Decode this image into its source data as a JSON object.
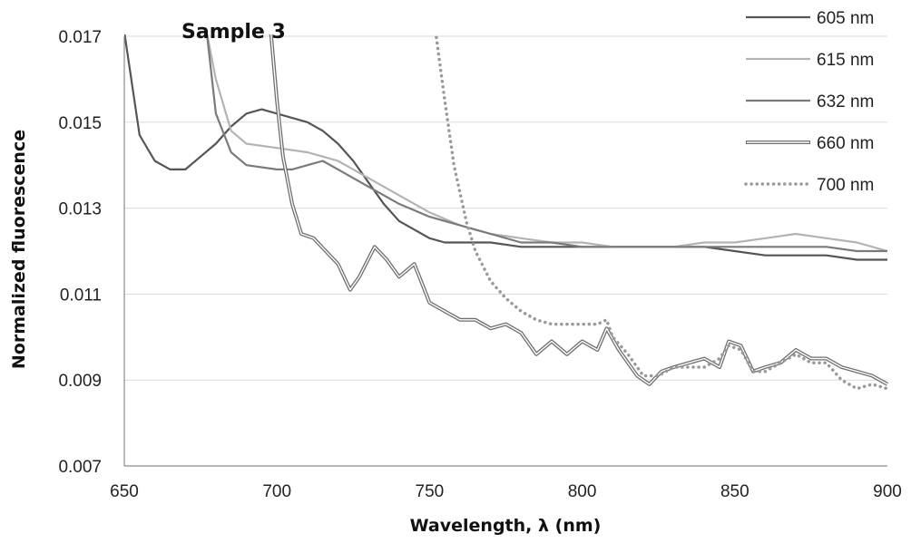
{
  "chart_data": {
    "type": "line",
    "annotation": "Sample 3",
    "xlabel": "Wavelength, λ (nm)",
    "ylabel": "Normalized fluorescence",
    "xlim": [
      650,
      900
    ],
    "ylim": [
      0.007,
      0.017
    ],
    "x_ticks": [
      650,
      700,
      750,
      800,
      850,
      900
    ],
    "y_ticks": [
      0.007,
      0.009,
      0.011,
      0.013,
      0.015,
      0.017
    ],
    "y_tick_labels": [
      "0.007",
      "0.009",
      "0.011",
      "0.013",
      "0.015",
      "0.017"
    ],
    "grid": "horizontal",
    "legend_position": "top-right",
    "series": [
      {
        "name": "605 nm",
        "color": "#555555",
        "style": "solid",
        "points": [
          [
            650,
            0.0171
          ],
          [
            655,
            0.0147
          ],
          [
            660,
            0.0141
          ],
          [
            665,
            0.0139
          ],
          [
            670,
            0.0139
          ],
          [
            675,
            0.0142
          ],
          [
            680,
            0.0145
          ],
          [
            685,
            0.0149
          ],
          [
            690,
            0.0152
          ],
          [
            695,
            0.0153
          ],
          [
            700,
            0.0152
          ],
          [
            705,
            0.0151
          ],
          [
            710,
            0.015
          ],
          [
            715,
            0.0148
          ],
          [
            720,
            0.0145
          ],
          [
            725,
            0.0141
          ],
          [
            730,
            0.0136
          ],
          [
            735,
            0.0131
          ],
          [
            740,
            0.0127
          ],
          [
            745,
            0.0125
          ],
          [
            750,
            0.0123
          ],
          [
            755,
            0.0122
          ],
          [
            760,
            0.0122
          ],
          [
            770,
            0.0122
          ],
          [
            780,
            0.0121
          ],
          [
            790,
            0.0121
          ],
          [
            800,
            0.0121
          ],
          [
            810,
            0.0121
          ],
          [
            820,
            0.0121
          ],
          [
            830,
            0.0121
          ],
          [
            840,
            0.0121
          ],
          [
            850,
            0.012
          ],
          [
            860,
            0.0119
          ],
          [
            870,
            0.0119
          ],
          [
            880,
            0.0119
          ],
          [
            890,
            0.0118
          ],
          [
            900,
            0.0118
          ]
        ]
      },
      {
        "name": "615 nm",
        "color": "#b3b3b3",
        "style": "solid",
        "points": [
          [
            677,
            0.0171
          ],
          [
            680,
            0.016
          ],
          [
            685,
            0.0148
          ],
          [
            690,
            0.0145
          ],
          [
            700,
            0.0144
          ],
          [
            710,
            0.0143
          ],
          [
            715,
            0.0142
          ],
          [
            720,
            0.0141
          ],
          [
            730,
            0.0137
          ],
          [
            740,
            0.0133
          ],
          [
            750,
            0.0129
          ],
          [
            760,
            0.0126
          ],
          [
            770,
            0.0124
          ],
          [
            780,
            0.0123
          ],
          [
            790,
            0.0122
          ],
          [
            800,
            0.0122
          ],
          [
            810,
            0.0121
          ],
          [
            820,
            0.0121
          ],
          [
            830,
            0.0121
          ],
          [
            840,
            0.0122
          ],
          [
            850,
            0.0122
          ],
          [
            860,
            0.0123
          ],
          [
            870,
            0.0124
          ],
          [
            880,
            0.0123
          ],
          [
            890,
            0.0122
          ],
          [
            900,
            0.012
          ]
        ]
      },
      {
        "name": "632 nm",
        "color": "#7a7a7a",
        "style": "solid",
        "points": [
          [
            677,
            0.0171
          ],
          [
            680,
            0.0152
          ],
          [
            685,
            0.0143
          ],
          [
            690,
            0.014
          ],
          [
            700,
            0.0139
          ],
          [
            705,
            0.0139
          ],
          [
            710,
            0.014
          ],
          [
            715,
            0.0141
          ],
          [
            720,
            0.0139
          ],
          [
            730,
            0.0135
          ],
          [
            740,
            0.0131
          ],
          [
            750,
            0.0128
          ],
          [
            760,
            0.0126
          ],
          [
            770,
            0.0124
          ],
          [
            780,
            0.0122
          ],
          [
            790,
            0.0122
          ],
          [
            800,
            0.0121
          ],
          [
            810,
            0.0121
          ],
          [
            820,
            0.0121
          ],
          [
            830,
            0.0121
          ],
          [
            840,
            0.0121
          ],
          [
            850,
            0.0121
          ],
          [
            860,
            0.0121
          ],
          [
            870,
            0.0121
          ],
          [
            880,
            0.0121
          ],
          [
            890,
            0.012
          ],
          [
            900,
            0.012
          ]
        ]
      },
      {
        "name": "660 nm",
        "color": "#6f6f6f",
        "style": "double",
        "points": [
          [
            698,
            0.0171
          ],
          [
            700,
            0.0155
          ],
          [
            702,
            0.0142
          ],
          [
            705,
            0.0131
          ],
          [
            708,
            0.0124
          ],
          [
            712,
            0.0123
          ],
          [
            716,
            0.012
          ],
          [
            720,
            0.0117
          ],
          [
            724,
            0.0111
          ],
          [
            727,
            0.0114
          ],
          [
            732,
            0.0121
          ],
          [
            736,
            0.0118
          ],
          [
            740,
            0.0114
          ],
          [
            745,
            0.0117
          ],
          [
            750,
            0.0108
          ],
          [
            755,
            0.0106
          ],
          [
            760,
            0.0104
          ],
          [
            765,
            0.0104
          ],
          [
            770,
            0.0102
          ],
          [
            775,
            0.0103
          ],
          [
            780,
            0.0101
          ],
          [
            785,
            0.0096
          ],
          [
            790,
            0.0099
          ],
          [
            795,
            0.0096
          ],
          [
            800,
            0.0099
          ],
          [
            805,
            0.0097
          ],
          [
            808,
            0.0102
          ],
          [
            812,
            0.0097
          ],
          [
            818,
            0.0091
          ],
          [
            822,
            0.0089
          ],
          [
            826,
            0.0092
          ],
          [
            830,
            0.0093
          ],
          [
            840,
            0.0095
          ],
          [
            845,
            0.0093
          ],
          [
            848,
            0.0099
          ],
          [
            852,
            0.0098
          ],
          [
            856,
            0.0092
          ],
          [
            860,
            0.0093
          ],
          [
            865,
            0.0094
          ],
          [
            870,
            0.0097
          ],
          [
            875,
            0.0095
          ],
          [
            880,
            0.0095
          ],
          [
            885,
            0.0093
          ],
          [
            890,
            0.0092
          ],
          [
            895,
            0.0091
          ],
          [
            900,
            0.0089
          ]
        ]
      },
      {
        "name": "700 nm",
        "color": "#999999",
        "style": "dotted",
        "points": [
          [
            752,
            0.0171
          ],
          [
            755,
            0.0155
          ],
          [
            758,
            0.014
          ],
          [
            762,
            0.0127
          ],
          [
            765,
            0.012
          ],
          [
            770,
            0.0113
          ],
          [
            775,
            0.0109
          ],
          [
            780,
            0.0106
          ],
          [
            785,
            0.0104
          ],
          [
            790,
            0.0103
          ],
          [
            795,
            0.0103
          ],
          [
            800,
            0.0103
          ],
          [
            805,
            0.0103
          ],
          [
            808,
            0.0104
          ],
          [
            810,
            0.01
          ],
          [
            815,
            0.0096
          ],
          [
            820,
            0.0091
          ],
          [
            825,
            0.0091
          ],
          [
            830,
            0.0093
          ],
          [
            840,
            0.0093
          ],
          [
            845,
            0.0095
          ],
          [
            848,
            0.0098
          ],
          [
            852,
            0.0097
          ],
          [
            856,
            0.0092
          ],
          [
            860,
            0.0092
          ],
          [
            865,
            0.0094
          ],
          [
            870,
            0.0096
          ],
          [
            875,
            0.0094
          ],
          [
            880,
            0.0094
          ],
          [
            885,
            0.009
          ],
          [
            890,
            0.0088
          ],
          [
            895,
            0.0089
          ],
          [
            900,
            0.0088
          ]
        ]
      }
    ]
  }
}
